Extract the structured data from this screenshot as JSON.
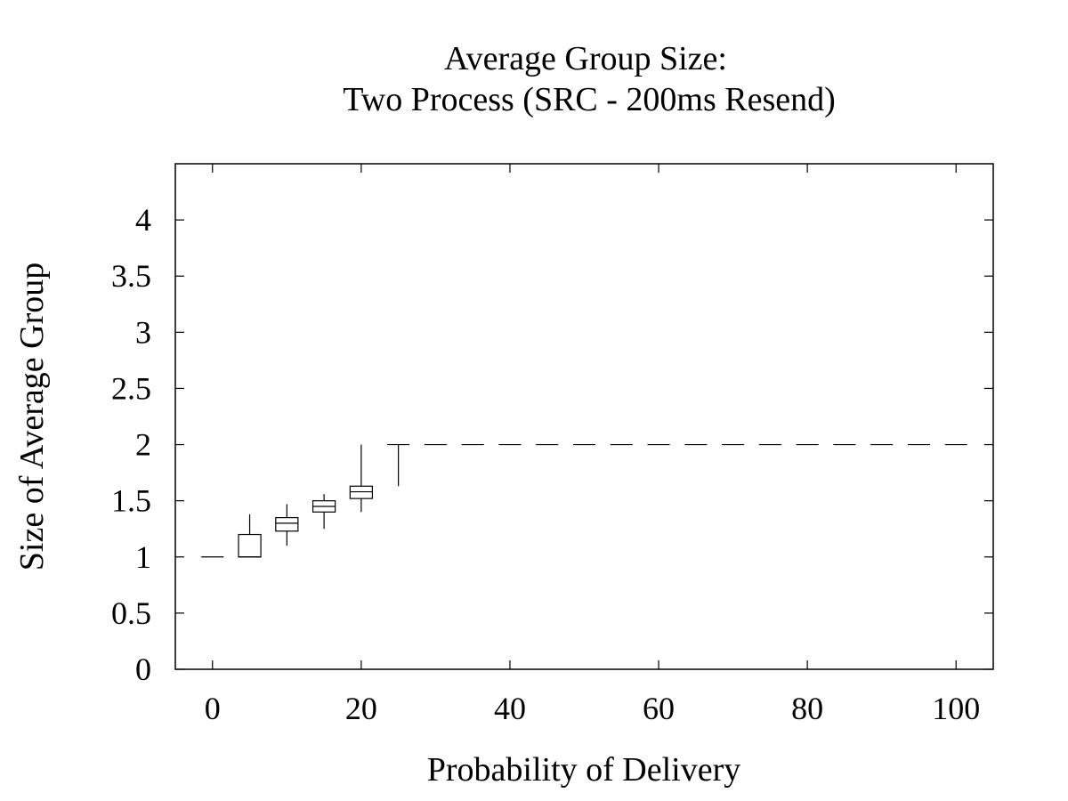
{
  "chart_data": {
    "type": "box",
    "title_line1": "Average Group Size:",
    "title_line2": "Two Process (SRC - 200ms Resend)",
    "xlabel": "Probability of Delivery",
    "ylabel": "Size of Average Group",
    "xlim": [
      -5,
      105
    ],
    "ylim": [
      0,
      4.5
    ],
    "x_ticks": [
      0,
      20,
      40,
      60,
      80,
      100
    ],
    "x_tick_labels": [
      "0",
      "20",
      "40",
      "60",
      "80",
      "100"
    ],
    "y_ticks": [
      0,
      0.5,
      1,
      1.5,
      2,
      2.5,
      3,
      3.5,
      4
    ],
    "y_tick_labels": [
      "0",
      "0.5",
      "1",
      "1.5",
      "2",
      "2.5",
      "3",
      "3.5",
      "4"
    ],
    "grid": false,
    "boxes": [
      {
        "x": 0,
        "min": 1.0,
        "q1": 1.0,
        "median": 1.0,
        "q3": 1.0,
        "max": 1.0
      },
      {
        "x": 5,
        "min": 1.0,
        "q1": 1.0,
        "median": 1.0,
        "q3": 1.2,
        "max": 1.38
      },
      {
        "x": 10,
        "min": 1.1,
        "q1": 1.23,
        "median": 1.3,
        "q3": 1.35,
        "max": 1.47
      },
      {
        "x": 15,
        "min": 1.25,
        "q1": 1.4,
        "median": 1.45,
        "q3": 1.5,
        "max": 1.56
      },
      {
        "x": 20,
        "min": 1.4,
        "q1": 1.52,
        "median": 1.58,
        "q3": 1.63,
        "max": 2.0
      },
      {
        "x": 25,
        "min": 1.63,
        "q1": 2.0,
        "median": 2.0,
        "q3": 2.0,
        "max": 2.0
      },
      {
        "x": 30,
        "min": 2.0,
        "q1": 2.0,
        "median": 2.0,
        "q3": 2.0,
        "max": 2.0
      },
      {
        "x": 35,
        "min": 2.0,
        "q1": 2.0,
        "median": 2.0,
        "q3": 2.0,
        "max": 2.0
      },
      {
        "x": 40,
        "min": 2.0,
        "q1": 2.0,
        "median": 2.0,
        "q3": 2.0,
        "max": 2.0
      },
      {
        "x": 45,
        "min": 2.0,
        "q1": 2.0,
        "median": 2.0,
        "q3": 2.0,
        "max": 2.0
      },
      {
        "x": 50,
        "min": 2.0,
        "q1": 2.0,
        "median": 2.0,
        "q3": 2.0,
        "max": 2.0
      },
      {
        "x": 55,
        "min": 2.0,
        "q1": 2.0,
        "median": 2.0,
        "q3": 2.0,
        "max": 2.0
      },
      {
        "x": 60,
        "min": 2.0,
        "q1": 2.0,
        "median": 2.0,
        "q3": 2.0,
        "max": 2.0
      },
      {
        "x": 65,
        "min": 2.0,
        "q1": 2.0,
        "median": 2.0,
        "q3": 2.0,
        "max": 2.0
      },
      {
        "x": 70,
        "min": 2.0,
        "q1": 2.0,
        "median": 2.0,
        "q3": 2.0,
        "max": 2.0
      },
      {
        "x": 75,
        "min": 2.0,
        "q1": 2.0,
        "median": 2.0,
        "q3": 2.0,
        "max": 2.0
      },
      {
        "x": 80,
        "min": 2.0,
        "q1": 2.0,
        "median": 2.0,
        "q3": 2.0,
        "max": 2.0
      },
      {
        "x": 85,
        "min": 2.0,
        "q1": 2.0,
        "median": 2.0,
        "q3": 2.0,
        "max": 2.0
      },
      {
        "x": 90,
        "min": 2.0,
        "q1": 2.0,
        "median": 2.0,
        "q3": 2.0,
        "max": 2.0
      },
      {
        "x": 95,
        "min": 2.0,
        "q1": 2.0,
        "median": 2.0,
        "q3": 2.0,
        "max": 2.0
      },
      {
        "x": 100,
        "min": 2.0,
        "q1": 2.0,
        "median": 2.0,
        "q3": 2.0,
        "max": 2.0
      }
    ],
    "colors": {
      "stroke": "#000000",
      "background": "#ffffff"
    }
  }
}
